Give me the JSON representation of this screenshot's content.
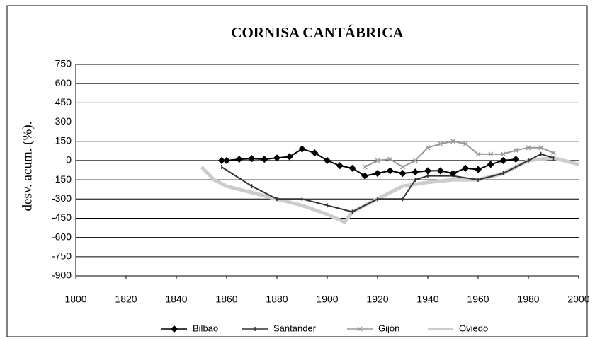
{
  "chart_data": {
    "type": "line",
    "title": "CORNISA CANTÁBRICA",
    "y_label": "desv. acum. (%).",
    "xlim": [
      1800,
      2000
    ],
    "xticks": [
      1800,
      1820,
      1840,
      1860,
      1880,
      1900,
      1920,
      1940,
      1960,
      1980,
      2000
    ],
    "ylim": [
      -900,
      750
    ],
    "yticks": [
      750,
      600,
      450,
      300,
      150,
      0,
      -150,
      -300,
      -450,
      -600,
      -750,
      -900
    ],
    "grid": true,
    "legend": "bottom",
    "series": [
      {
        "name": "Bilbao",
        "color": "#000000",
        "marker": "diamond",
        "x": [
          1858,
          1860,
          1865,
          1870,
          1875,
          1880,
          1885,
          1890,
          1895,
          1900,
          1905,
          1910,
          1915,
          1920,
          1925,
          1930,
          1935,
          1940,
          1945,
          1950,
          1955,
          1960,
          1965,
          1970,
          1975
        ],
        "values": [
          0,
          0,
          10,
          15,
          10,
          20,
          30,
          90,
          60,
          0,
          -40,
          -60,
          -120,
          -100,
          -80,
          -100,
          -90,
          -80,
          -80,
          -100,
          -60,
          -70,
          -30,
          0,
          10
        ]
      },
      {
        "name": "Santander",
        "color": "#333333",
        "marker": "tick",
        "x": [
          1858,
          1870,
          1880,
          1890,
          1900,
          1910,
          1920,
          1930,
          1935,
          1940,
          1950,
          1960,
          1970,
          1975,
          1980,
          1985,
          1990
        ],
        "values": [
          -50,
          -200,
          -300,
          -300,
          -350,
          -400,
          -300,
          -300,
          -150,
          -120,
          -120,
          -150,
          -100,
          -50,
          0,
          50,
          20
        ]
      },
      {
        "name": "Gijón",
        "color": "#999999",
        "marker": "cross",
        "x": [
          1915,
          1920,
          1925,
          1930,
          1935,
          1940,
          1945,
          1950,
          1955,
          1960,
          1965,
          1970,
          1975,
          1980,
          1985,
          1990
        ],
        "values": [
          -50,
          0,
          10,
          -50,
          0,
          100,
          130,
          150,
          130,
          50,
          50,
          50,
          80,
          100,
          100,
          60
        ]
      },
      {
        "name": "Oviedo",
        "color": "#cccccc",
        "marker": "none",
        "x": [
          1850,
          1855,
          1860,
          1870,
          1880,
          1890,
          1900,
          1907,
          1910,
          1915,
          1920,
          1925,
          1930,
          1940,
          1950,
          1960,
          1970,
          1980,
          1990,
          2000
        ],
        "values": [
          -50,
          -150,
          -200,
          -250,
          -300,
          -350,
          -420,
          -480,
          -400,
          -350,
          -300,
          -250,
          -200,
          -170,
          -150,
          -150,
          -100,
          0,
          20,
          -30
        ]
      }
    ]
  }
}
